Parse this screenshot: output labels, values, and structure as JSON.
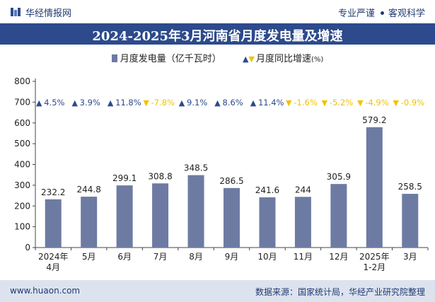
{
  "header": {
    "brand": "华经情报网",
    "tag1": "专业严谨",
    "tag2": "客观科学"
  },
  "title": "2024-2025年3月河南省月度发电量及增速",
  "legend": {
    "bar_label": "月度发电量（亿千瓦时）",
    "line_label": "月度同比增速",
    "line_unit": "(%)"
  },
  "footer": {
    "website": "www.huaon.com",
    "source": "数据来源：国家统计局，华经产业研究院整理"
  },
  "colors": {
    "bar": "#6d7ba3",
    "up": "#2c4a8c",
    "down": "#f2c200",
    "header_bg": "#2c4a8c",
    "footer_bg": "#dde3ee"
  },
  "chart_data": {
    "type": "bar",
    "categories": [
      "2024年\n4月",
      "5月",
      "6月",
      "7月",
      "8月",
      "9月",
      "10月",
      "11月",
      "12月",
      "2025年\n1-2月",
      "3月"
    ],
    "series": [
      {
        "name": "月度发电量（亿千瓦时）",
        "values": [
          232.2,
          244.8,
          299.1,
          308.8,
          348.5,
          286.5,
          241.6,
          244,
          305.9,
          579.2,
          258.5
        ]
      },
      {
        "name": "月度同比增速(%)",
        "values": [
          4.5,
          3.9,
          11.8,
          -7.8,
          9.1,
          8.6,
          11.4,
          -1.6,
          -5.2,
          -4.9,
          -0.9
        ]
      }
    ],
    "growth_labels": [
      "4.5%",
      "3.9%",
      "11.8%",
      "-7.8%",
      "9.1%",
      "8.6%",
      "11.4%",
      "-1.6%",
      "-5.2%",
      "-4.9%",
      "-0.9%"
    ],
    "ylim": [
      0,
      800
    ],
    "yticks": [
      0,
      100,
      200,
      300,
      400,
      500,
      600,
      700,
      800
    ],
    "grid": false,
    "legend_position": "top-center"
  }
}
